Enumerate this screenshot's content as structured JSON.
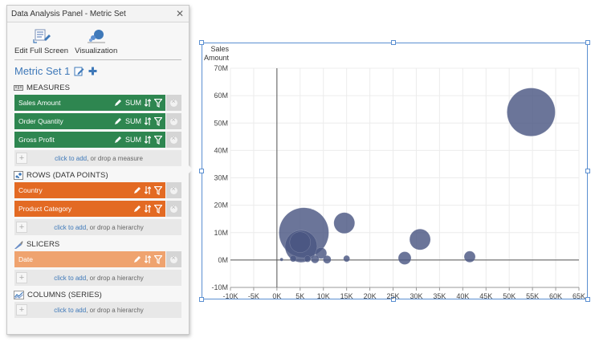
{
  "panel": {
    "title": "Data Analysis Panel - Metric Set",
    "toolbar": {
      "edit_label": "Edit Full Screen",
      "visualization_label": "Visualization"
    },
    "metric_set_name": "Metric Set 1",
    "sections": {
      "measures": "MEASURES",
      "rows": "ROWS (DATA POINTS)",
      "slicers": "SLICERS",
      "columns": "COLUMNS (SERIES)"
    },
    "measures": [
      {
        "label": "Sales Amount",
        "agg": "SUM"
      },
      {
        "label": "Order Quantity",
        "agg": "SUM"
      },
      {
        "label": "Gross Profit",
        "agg": "SUM"
      }
    ],
    "rows": [
      {
        "label": "Country"
      },
      {
        "label": "Product Category"
      }
    ],
    "slicers": [
      {
        "label": "Date"
      }
    ],
    "drop_measure": {
      "link": "click to add",
      "rest": ", or drop a measure"
    },
    "drop_hierarchy": {
      "link": "click to add",
      "rest": ", or drop a hierarchy"
    },
    "colors": {
      "measure": "#2e8650",
      "row": "#e36a23",
      "slicer": "#efa36f",
      "link": "#3f79b9"
    }
  },
  "chart_data": {
    "type": "scatter",
    "ylabel": "Sales\nAmount",
    "xlim": [
      -10000,
      65000
    ],
    "ylim": [
      -10000000,
      70000000
    ],
    "x_ticks": [
      "-10K",
      "-5K",
      "0K",
      "5K",
      "10K",
      "15K",
      "20K",
      "25K",
      "30K",
      "35K",
      "40K",
      "45K",
      "50K",
      "55K",
      "60K",
      "65K"
    ],
    "y_ticks": [
      "-10M",
      "0M",
      "10M",
      "20M",
      "30M",
      "40M",
      "50M",
      "60M",
      "70M"
    ],
    "grid": true,
    "bubble_color": "#4a5783",
    "points": [
      {
        "x": 54700,
        "y": 54000000,
        "size": 30
      },
      {
        "x": 5800,
        "y": 10000000,
        "size": 31
      },
      {
        "x": 5200,
        "y": 5000000,
        "size": 20
      },
      {
        "x": 5000,
        "y": 6500000,
        "size": 13
      },
      {
        "x": 14500,
        "y": 13500000,
        "size": 13
      },
      {
        "x": 30800,
        "y": 7500000,
        "size": 13
      },
      {
        "x": 27500,
        "y": 700000,
        "size": 8
      },
      {
        "x": 41500,
        "y": 1200000,
        "size": 7
      },
      {
        "x": 9500,
        "y": 2500000,
        "size": 7
      },
      {
        "x": 10800,
        "y": 200000,
        "size": 5
      },
      {
        "x": 15000,
        "y": 500000,
        "size": 4
      },
      {
        "x": 8200,
        "y": 300000,
        "size": 5
      },
      {
        "x": 6600,
        "y": 400000,
        "size": 4
      },
      {
        "x": 3500,
        "y": 500000,
        "size": 4
      },
      {
        "x": 1000,
        "y": 200000,
        "size": 2
      }
    ]
  }
}
